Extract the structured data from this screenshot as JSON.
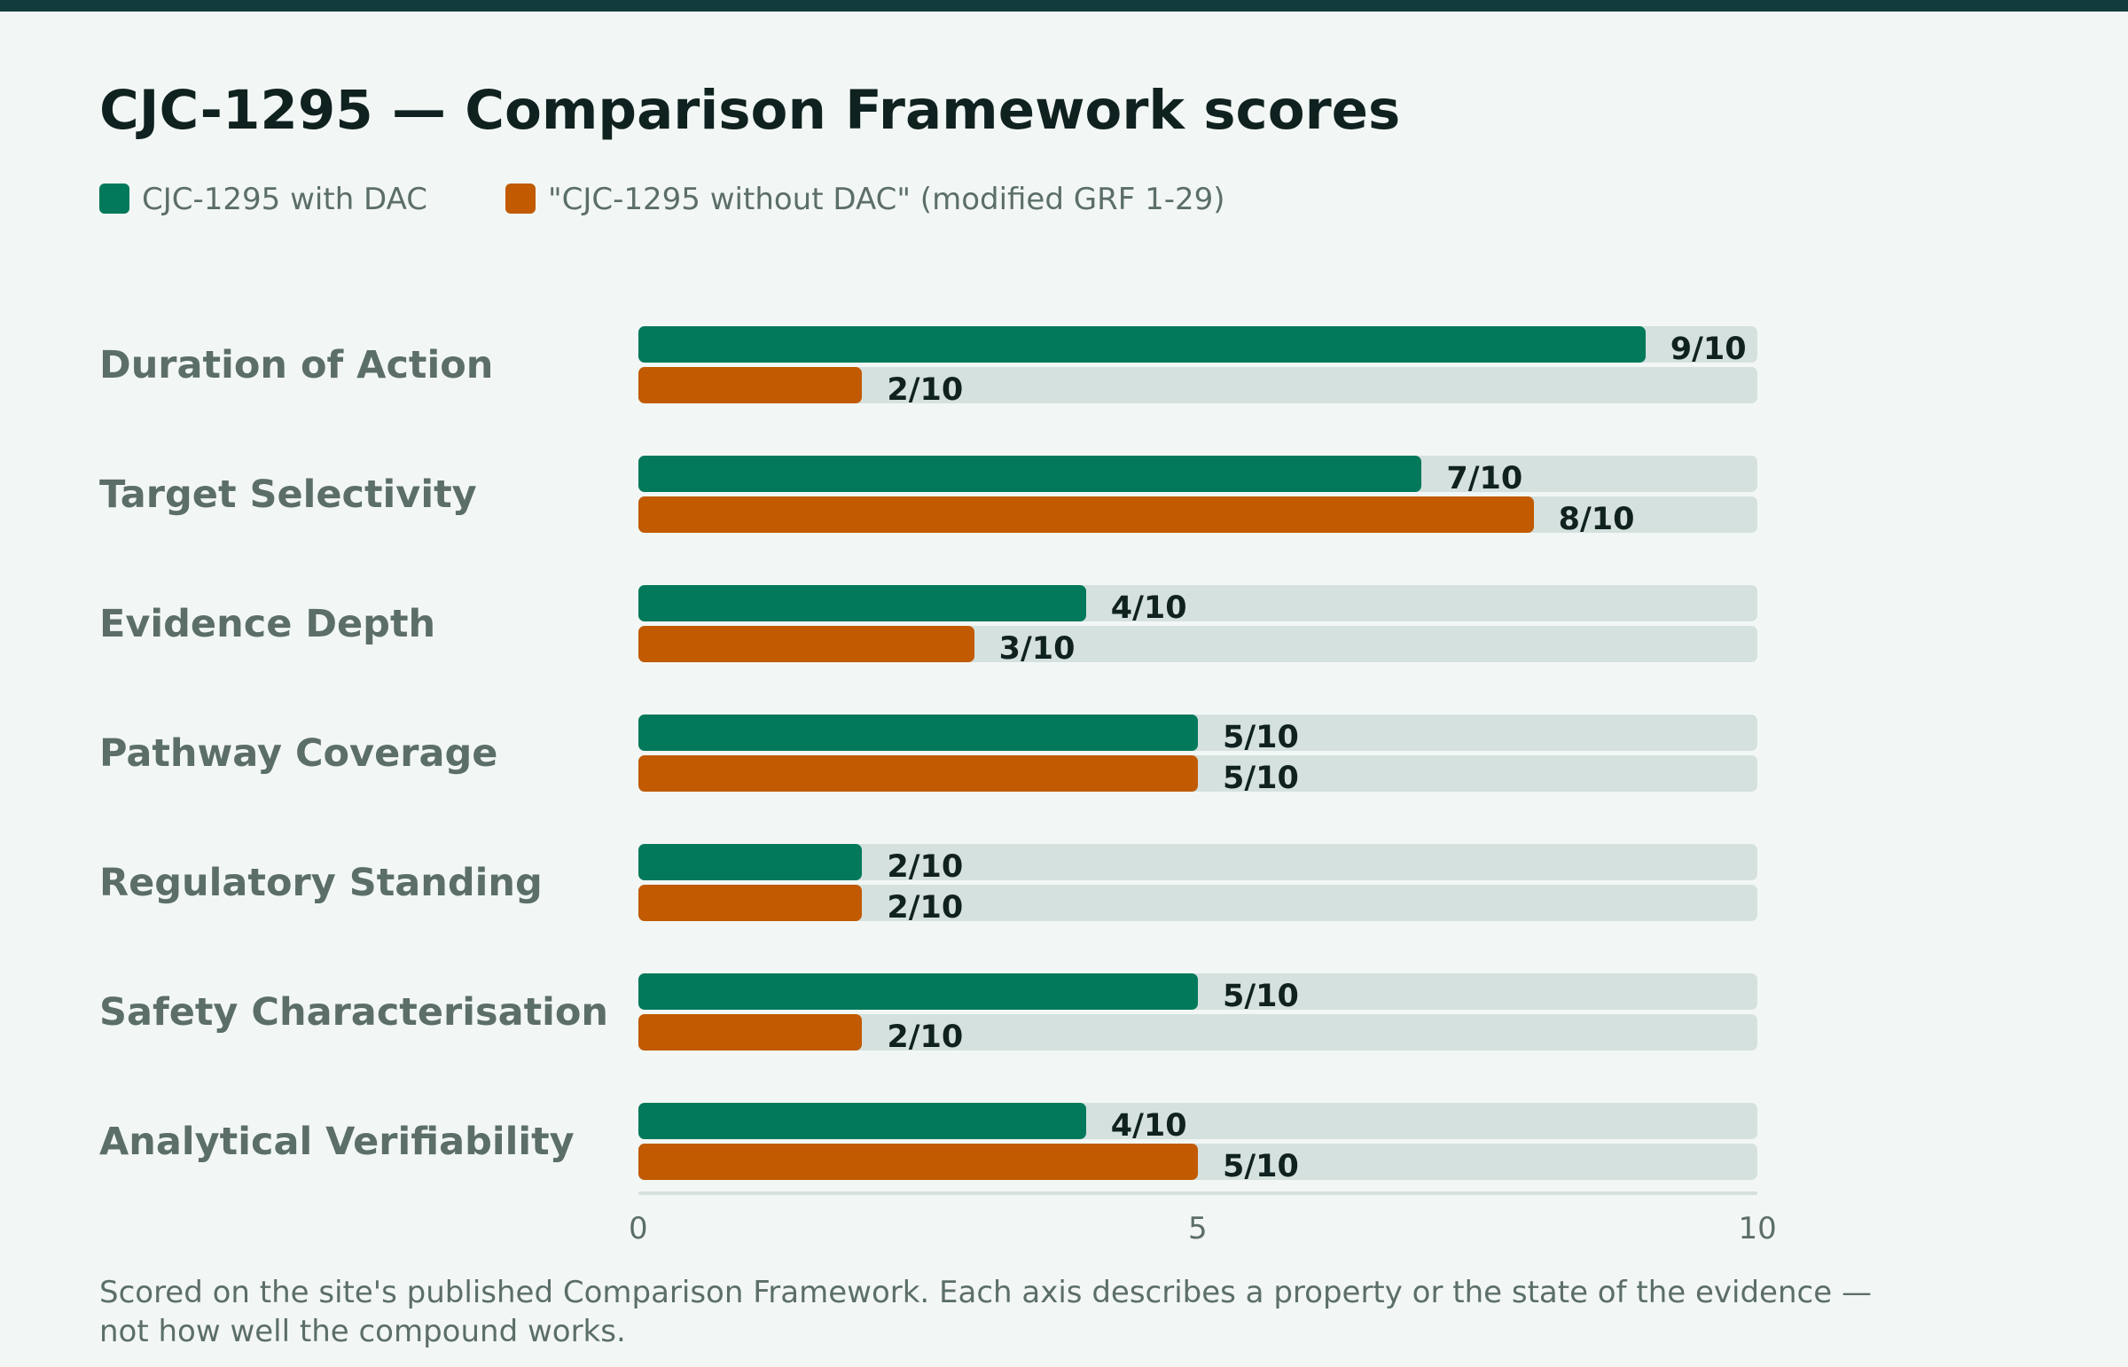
{
  "chart_data": {
    "type": "bar",
    "orientation": "horizontal",
    "title": "CJC-1295 — Comparison Framework scores",
    "categories": [
      "Duration of Action",
      "Target Selectivity",
      "Evidence Depth",
      "Pathway Coverage",
      "Regulatory Standing",
      "Safety Characterisation",
      "Analytical Verifiability"
    ],
    "series": [
      {
        "name": "CJC-1295 with DAC",
        "color": "#02795a",
        "values": [
          9,
          7,
          4,
          5,
          2,
          5,
          4
        ],
        "labels": [
          "9/10",
          "7/10",
          "4/10",
          "5/10",
          "2/10",
          "5/10",
          "4/10"
        ]
      },
      {
        "name": "\"CJC-1295 without DAC\" (modified GRF 1-29)",
        "color": "#c15a00",
        "values": [
          2,
          8,
          3,
          5,
          2,
          2,
          5
        ],
        "labels": [
          "2/10",
          "8/10",
          "3/10",
          "5/10",
          "2/10",
          "2/10",
          "5/10"
        ]
      }
    ],
    "xlim": [
      0,
      10
    ],
    "xticks": [
      "0",
      "5",
      "10"
    ],
    "legend_position": "top-left",
    "grid": false
  },
  "footnote": "Scored on the site's published Comparison Framework. Each axis describes a property or the state of the evidence — not how well the compound works."
}
